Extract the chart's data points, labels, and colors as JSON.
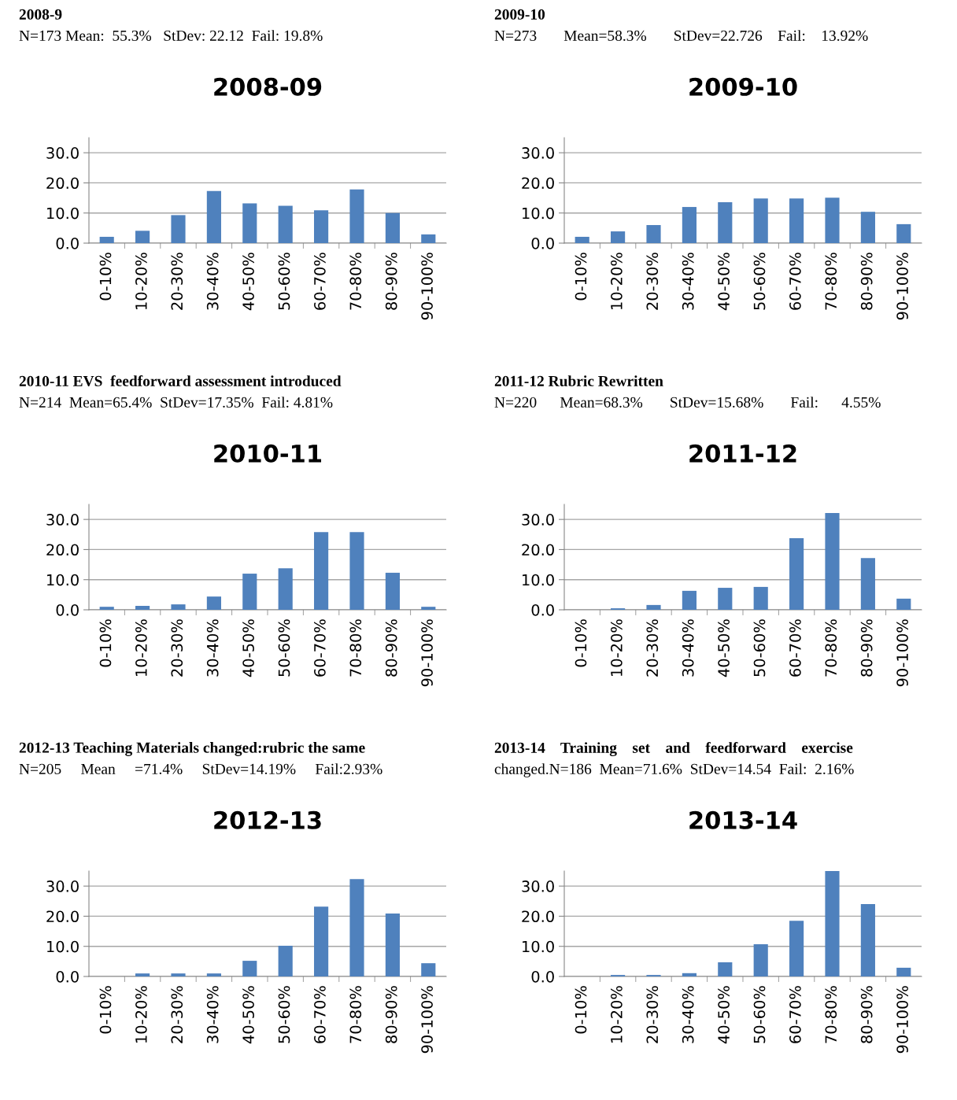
{
  "chart_data": [
    {
      "type": "bar",
      "title": "2008-09",
      "subtitle": "2008-9",
      "annotations": [
        "N=173 Mean:  55.3%   StDev: 22.12  Fail: 19.8%"
      ],
      "categories": [
        "0-10%",
        "10-20%",
        "20-30%",
        "30-40%",
        "40-50%",
        "50-60%",
        "60-70%",
        "70-80%",
        "80-90%",
        "90-100%"
      ],
      "values": [
        2.1,
        4.1,
        9.3,
        17.3,
        13.2,
        12.4,
        10.9,
        17.8,
        10.0,
        2.9
      ],
      "color": "#4f81bd",
      "ylim": [
        0,
        35
      ],
      "yticks": [
        {
          "value": 0,
          "label": "0.0"
        },
        {
          "value": 10,
          "label": "10.0"
        },
        {
          "value": 20,
          "label": "20.0"
        },
        {
          "value": 30,
          "label": "30.0"
        }
      ],
      "grid": "y",
      "legend": false
    },
    {
      "type": "bar",
      "title": "2009-10",
      "subtitle": "2009-10",
      "annotations": [
        "N=273       Mean=58.3%       StDev=22.726    Fail:    13.92%"
      ],
      "categories": [
        "0-10%",
        "10-20%",
        "20-30%",
        "30-40%",
        "40-50%",
        "50-60%",
        "60-70%",
        "70-80%",
        "80-90%",
        "90-100%"
      ],
      "values": [
        2.1,
        3.9,
        6.0,
        12.0,
        13.6,
        14.8,
        14.8,
        15.1,
        10.4,
        6.3
      ],
      "color": "#4f81bd",
      "ylim": [
        0,
        35
      ],
      "yticks": [
        {
          "value": 0,
          "label": "0.0"
        },
        {
          "value": 10,
          "label": "10.0"
        },
        {
          "value": 20,
          "label": "20.0"
        },
        {
          "value": 30,
          "label": "30.0"
        }
      ],
      "grid": "y",
      "legend": false
    },
    {
      "type": "bar",
      "title": "2010-11",
      "subtitle": "2010-11 EVS  feedforward assessment introduced",
      "annotations": [
        "N=214  Mean=65.4%  StDev=17.35%  Fail: 4.81%"
      ],
      "categories": [
        "0-10%",
        "10-20%",
        "20-30%",
        "30-40%",
        "40-50%",
        "50-60%",
        "60-70%",
        "70-80%",
        "80-90%",
        "90-100%"
      ],
      "values": [
        1.0,
        1.3,
        1.8,
        4.4,
        12.0,
        13.8,
        25.8,
        25.8,
        12.3,
        1.0
      ],
      "color": "#4f81bd",
      "ylim": [
        0,
        35
      ],
      "yticks": [
        {
          "value": 0,
          "label": "0.0"
        },
        {
          "value": 10,
          "label": "10.0"
        },
        {
          "value": 20,
          "label": "20.0"
        },
        {
          "value": 30,
          "label": "30.0"
        }
      ],
      "grid": "y",
      "legend": false
    },
    {
      "type": "bar",
      "title": "2011-12",
      "subtitle": "2011-12 Rubric Rewritten",
      "annotations": [
        "N=220      Mean=68.3%       StDev=15.68%       Fail:      4.55%"
      ],
      "categories": [
        "0-10%",
        "10-20%",
        "20-30%",
        "30-40%",
        "40-50%",
        "50-60%",
        "60-70%",
        "70-80%",
        "80-90%",
        "90-100%"
      ],
      "values": [
        0,
        0.5,
        1.6,
        6.3,
        7.3,
        7.6,
        23.8,
        32.1,
        17.2,
        3.7
      ],
      "color": "#4f81bd",
      "ylim": [
        0,
        35
      ],
      "yticks": [
        {
          "value": 0,
          "label": "0.0"
        },
        {
          "value": 10,
          "label": "10.0"
        },
        {
          "value": 20,
          "label": "20.0"
        },
        {
          "value": 30,
          "label": "30.0"
        }
      ],
      "grid": "y",
      "legend": false
    },
    {
      "type": "bar",
      "title": "2012-13",
      "subtitle": "2012-13 Teaching Materials changed:rubric the same",
      "annotations": [
        "N=205     Mean     =71.4%     StDev=14.19%     Fail:2.93%"
      ],
      "categories": [
        "0-10%",
        "10-20%",
        "20-30%",
        "30-40%",
        "40-50%",
        "50-60%",
        "60-70%",
        "70-80%",
        "80-90%",
        "90-100%"
      ],
      "values": [
        0,
        1.0,
        1.0,
        1.0,
        5.2,
        10.2,
        23.2,
        32.3,
        20.9,
        4.4
      ],
      "color": "#4f81bd",
      "ylim": [
        0,
        35
      ],
      "yticks": [
        {
          "value": 0,
          "label": "0.0"
        },
        {
          "value": 10,
          "label": "10.0"
        },
        {
          "value": 20,
          "label": "20.0"
        },
        {
          "value": 30,
          "label": "30.0"
        }
      ],
      "grid": "y",
      "legend": false
    },
    {
      "type": "bar",
      "title": "2013-14",
      "subtitle": "2013-14    Training    set    and    feedforward    exercise",
      "annotations": [
        "changed.N=186  Mean=71.6%  StDev=14.54  Fail:  2.16%"
      ],
      "categories": [
        "0-10%",
        "10-20%",
        "20-30%",
        "30-40%",
        "40-50%",
        "50-60%",
        "60-70%",
        "70-80%",
        "80-90%",
        "90-100%"
      ],
      "values": [
        0,
        0.5,
        0.5,
        1.1,
        4.7,
        10.7,
        18.5,
        35.0,
        24.0,
        2.9
      ],
      "color": "#4f81bd",
      "ylim": [
        0,
        35
      ],
      "yticks": [
        {
          "value": 0,
          "label": "0.0"
        },
        {
          "value": 10,
          "label": "10.0"
        },
        {
          "value": 20,
          "label": "20.0"
        },
        {
          "value": 30,
          "label": "30.0"
        }
      ],
      "grid": "y",
      "legend": false
    }
  ]
}
